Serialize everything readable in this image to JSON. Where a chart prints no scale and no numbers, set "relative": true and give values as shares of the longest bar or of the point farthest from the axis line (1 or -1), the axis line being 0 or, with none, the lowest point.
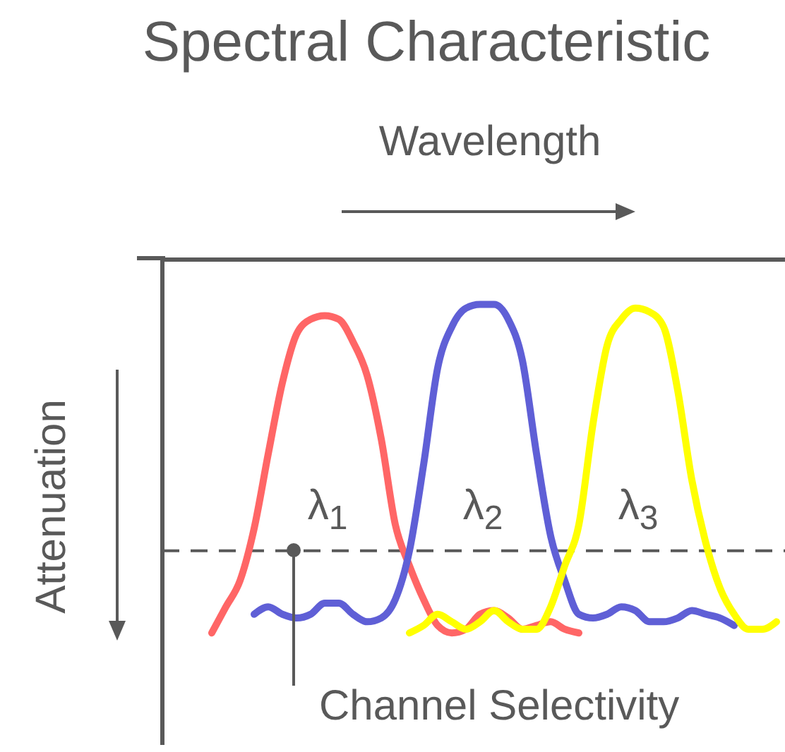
{
  "chart_data": {
    "type": "line",
    "title": "Spectral Characteristic",
    "xlabel": "Wavelength",
    "ylabel": "Attenuation",
    "relative": true,
    "categories": [
      null,
      null,
      null,
      null,
      null,
      null,
      null,
      null,
      null,
      null,
      null,
      null,
      null,
      null,
      null,
      null,
      null,
      null,
      null,
      null,
      null,
      null,
      null,
      null,
      null,
      null,
      null,
      null,
      null,
      null,
      null,
      null,
      null,
      null,
      null,
      null,
      null,
      null,
      null,
      null,
      null,
      null
    ],
    "series": [
      {
        "name": "λ$_{1}$",
        "color": "#ff6666",
        "values": [
          null,
          -1.0,
          -0.93,
          -0.86,
          -0.72,
          -0.52,
          -0.33,
          -0.2,
          -0.16,
          -0.15,
          -0.16,
          -0.22,
          -0.31,
          -0.48,
          -0.71,
          -0.82,
          -0.91,
          -0.98,
          -1.0,
          -0.99,
          -0.95,
          -0.94,
          -0.96,
          -0.99,
          -0.98,
          -0.97,
          -0.99,
          -1.0,
          null,
          null,
          null,
          null,
          null,
          null,
          null,
          null,
          null,
          null,
          null,
          null,
          null,
          null
        ]
      },
      {
        "name": "λ$_{2}$",
        "color": "#5f5fd6",
        "values": [
          null,
          null,
          null,
          null,
          -0.95,
          -0.93,
          -0.95,
          -0.96,
          -0.95,
          -0.92,
          -0.92,
          -0.95,
          -0.97,
          -0.96,
          -0.91,
          -0.78,
          -0.55,
          -0.29,
          -0.18,
          -0.13,
          -0.12,
          -0.12,
          -0.16,
          -0.27,
          -0.52,
          -0.74,
          -0.86,
          -0.95,
          -0.96,
          -0.95,
          -0.93,
          -0.94,
          -0.97,
          -0.97,
          -0.96,
          -0.94,
          -0.95,
          -0.96,
          -0.98,
          null,
          null,
          null
        ]
      },
      {
        "name": "λ$_{3}$",
        "color": "#ffff00",
        "values": [
          null,
          null,
          null,
          null,
          null,
          null,
          null,
          null,
          null,
          null,
          null,
          null,
          null,
          null,
          null,
          -1.0,
          -0.98,
          -0.95,
          -0.97,
          -0.99,
          -0.97,
          -0.94,
          -0.97,
          -0.99,
          -0.99,
          -0.93,
          -0.82,
          -0.71,
          -0.44,
          -0.23,
          -0.16,
          -0.13,
          -0.14,
          -0.18,
          -0.35,
          -0.59,
          -0.76,
          -0.88,
          -0.95,
          -0.99,
          -0.99,
          -0.97
        ]
      }
    ],
    "ref_lines": [
      {
        "axis": "y",
        "value": -0.78,
        "line_style": "dashed",
        "color": "#595959"
      }
    ],
    "annotations": [
      "Channel Selectivity"
    ]
  }
}
